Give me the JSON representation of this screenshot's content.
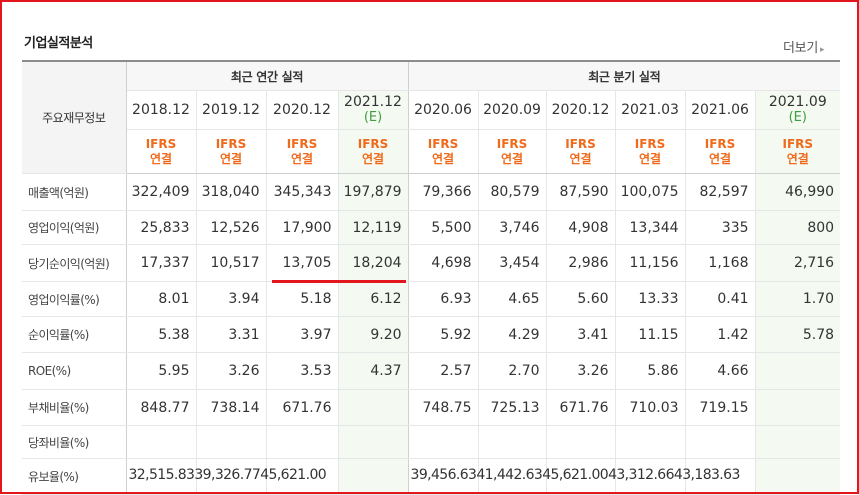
{
  "section": {
    "title": "기업실적분석",
    "more_label": "더보기",
    "more_arrow": "▸"
  },
  "table": {
    "corner_label": "주요재무정보",
    "group_annual": "최근 연간 실적",
    "group_quarter": "최근 분기 실적",
    "periods": [
      {
        "label": "2018.12",
        "estimate": ""
      },
      {
        "label": "2019.12",
        "estimate": ""
      },
      {
        "label": "2020.12",
        "estimate": ""
      },
      {
        "label": "2021.12",
        "estimate": "(E)"
      },
      {
        "label": "2020.06",
        "estimate": ""
      },
      {
        "label": "2020.09",
        "estimate": ""
      },
      {
        "label": "2020.12",
        "estimate": ""
      },
      {
        "label": "2021.03",
        "estimate": ""
      },
      {
        "label": "2021.06",
        "estimate": ""
      },
      {
        "label": "2021.09",
        "estimate": "(E)"
      }
    ],
    "ifrs_top": "IFRS",
    "ifrs_bottom": "연결",
    "rows": [
      {
        "label": "매출액(억원)",
        "values": [
          "322,409",
          "318,040",
          "345,343",
          "197,879",
          "79,366",
          "80,579",
          "87,590",
          "100,075",
          "82,597",
          "46,990"
        ]
      },
      {
        "label": "영업이익(억원)",
        "values": [
          "25,833",
          "12,526",
          "17,900",
          "12,119",
          "5,500",
          "3,746",
          "4,908",
          "13,344",
          "335",
          "800"
        ]
      },
      {
        "label": "당기순이익(억원)",
        "values": [
          "17,337",
          "10,517",
          "13,705",
          "18,204",
          "4,698",
          "3,454",
          "2,986",
          "11,156",
          "1,168",
          "2,716"
        ]
      },
      {
        "label": "영업이익률(%)",
        "values": [
          "8.01",
          "3.94",
          "5.18",
          "6.12",
          "6.93",
          "4.65",
          "5.60",
          "13.33",
          "0.41",
          "1.70"
        ]
      },
      {
        "label": "순이익률(%)",
        "values": [
          "5.38",
          "3.31",
          "3.97",
          "9.20",
          "5.92",
          "4.29",
          "3.41",
          "11.15",
          "1.42",
          "5.78"
        ]
      },
      {
        "label": "ROE(%)",
        "values": [
          "5.95",
          "3.26",
          "3.53",
          "4.37",
          "2.57",
          "2.70",
          "3.26",
          "5.86",
          "4.66",
          ""
        ]
      },
      {
        "label": "부채비율(%)",
        "values": [
          "848.77",
          "738.14",
          "671.76",
          "",
          "748.75",
          "725.13",
          "671.76",
          "710.03",
          "719.15",
          ""
        ]
      },
      {
        "label": "당좌비율(%)",
        "values": [
          "",
          "",
          "",
          "",
          "",
          "",
          "",
          "",
          "",
          ""
        ]
      },
      {
        "label": "유보율(%)",
        "annual_text": "32,515.8339,326.7745,621.00",
        "quarter_text": "39,456.6341,442.6345,621.0043,312.6643,183.63"
      }
    ]
  }
}
